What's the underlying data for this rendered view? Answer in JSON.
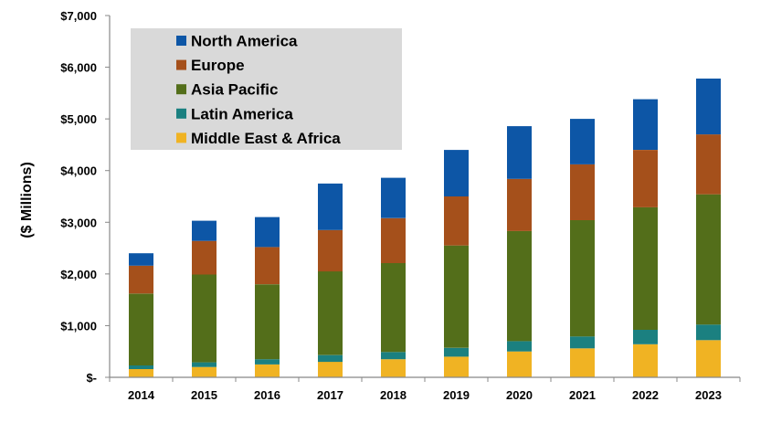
{
  "chart_data": {
    "type": "bar",
    "stacked": true,
    "title": "",
    "xlabel": "",
    "ylabel": "($ Millions)",
    "ylim": [
      0,
      7000
    ],
    "y_ticks": [
      0,
      1000,
      2000,
      3000,
      4000,
      5000,
      6000,
      7000
    ],
    "y_tick_labels": [
      "$-",
      "$1,000",
      "$2,000",
      "$3,000",
      "$4,000",
      "$5,000",
      "$6,000",
      "$7,000"
    ],
    "grid": false,
    "legend_position": "top-left",
    "categories": [
      "2014",
      "2015",
      "2016",
      "2017",
      "2018",
      "2019",
      "2020",
      "2021",
      "2022",
      "2023"
    ],
    "series": [
      {
        "name": "Middle East & Africa",
        "color": "#F0B323",
        "values": [
          160,
          200,
          250,
          300,
          350,
          400,
          500,
          560,
          640,
          720
        ]
      },
      {
        "name": "Latin America",
        "color": "#1B8080",
        "values": [
          70,
          90,
          100,
          130,
          140,
          170,
          200,
          230,
          280,
          300
        ]
      },
      {
        "name": "Asia Pacific",
        "color": "#536E1A",
        "values": [
          1390,
          1700,
          1450,
          1620,
          1720,
          1980,
          2130,
          2250,
          2370,
          2520
        ]
      },
      {
        "name": "Europe",
        "color": "#A5501B",
        "values": [
          540,
          650,
          720,
          800,
          870,
          950,
          1010,
          1080,
          1110,
          1160
        ]
      },
      {
        "name": "North America",
        "color": "#0D56A6",
        "values": [
          240,
          390,
          580,
          900,
          780,
          900,
          1020,
          880,
          980,
          1080
        ]
      }
    ],
    "legend_order": [
      "North America",
      "Europe",
      "Asia Pacific",
      "Latin America",
      "Middle East & Africa"
    ]
  }
}
